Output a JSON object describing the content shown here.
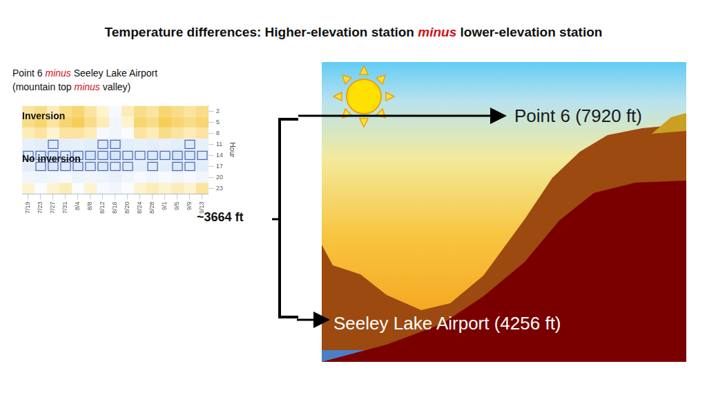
{
  "title": [
    {
      "text": "Temperature differences: Higher-elevation station "
    },
    {
      "text": "minus",
      "emph": true
    },
    {
      "text": " lower-elevation station"
    }
  ],
  "subtitle": [
    [
      {
        "text": "Point 6 "
      },
      {
        "text": "minus",
        "emph": true
      },
      {
        "text": " Seeley Lake Airport"
      }
    ],
    [
      {
        "text": "(mountain top "
      },
      {
        "text": "minus",
        "emph": true
      },
      {
        "text": " valley)"
      }
    ]
  ],
  "chart_data": {
    "type": "heatmap",
    "categories": [
      "7/19",
      "7/23",
      "7/27",
      "7/31",
      "8/4",
      "8/8",
      "8/12",
      "8/16",
      "8/20",
      "8/24",
      "8/28",
      "9/1",
      "9/5",
      "9/9",
      "9/13"
    ],
    "y": [
      2,
      5,
      8,
      11,
      14,
      17,
      20,
      23
    ],
    "ylim": [
      0.5,
      24.5
    ],
    "yticks": [
      2,
      5,
      8,
      11,
      14,
      17,
      20,
      23
    ],
    "y_label": "Hour",
    "grid": true,
    "annotations": [
      "Inversion",
      "No inversion"
    ],
    "cells": [
      [
        3,
        4,
        2,
        4,
        5,
        3,
        1,
        -1,
        2,
        4,
        3,
        5,
        4,
        3,
        4
      ],
      [
        4,
        5,
        3,
        5,
        6,
        4,
        2,
        -2,
        1,
        5,
        4,
        6,
        5,
        4,
        5
      ],
      [
        2,
        3,
        1,
        3,
        3,
        2,
        -1,
        -2,
        0,
        3,
        2,
        4,
        3,
        2,
        3
      ],
      [
        -4,
        -5,
        -6,
        -5,
        -4,
        -5,
        -6,
        -7,
        -5,
        -4,
        -5,
        -4,
        -5,
        -6,
        -4
      ],
      [
        -6,
        -7,
        -8,
        -6,
        -7,
        -8,
        -7,
        -8,
        -7,
        -6,
        -7,
        -6,
        -8,
        -7,
        -6
      ],
      [
        -5,
        -6,
        -7,
        -6,
        -7,
        -6,
        -7,
        -6,
        -6,
        -5,
        -6,
        -5,
        -7,
        -6,
        -5
      ],
      [
        -2,
        -3,
        -2,
        -1,
        -3,
        -2,
        -3,
        -4,
        -2,
        -1,
        -2,
        -1,
        -2,
        -1,
        -2
      ],
      [
        1,
        0,
        1,
        2,
        0,
        1,
        -1,
        -2,
        0,
        1,
        2,
        1,
        2,
        1,
        3
      ]
    ]
  },
  "diagram": {
    "top_station": "Point 6 (7920 ft)",
    "bottom_station": "Seeley Lake Airport (4256 ft)",
    "height_difference": "~3664 ft"
  }
}
